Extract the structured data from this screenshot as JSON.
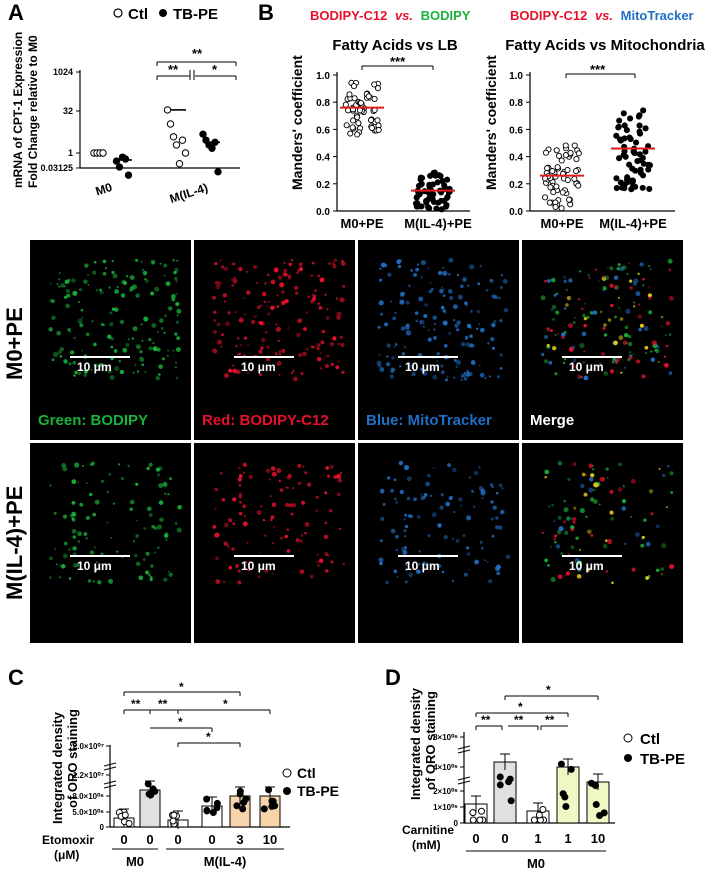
{
  "panels": {
    "A": "A",
    "B": "B",
    "C": "C",
    "D": "D"
  },
  "legend": {
    "ctl": "Ctl",
    "tbpe": "TB-PE"
  },
  "panelA": {
    "ylabel_line1": "mRNA of CPT-1 Expression",
    "ylabel_line2": "Fold Change relative to M0",
    "yticks": [
      "1024",
      "32",
      "1",
      "0.03125"
    ],
    "xcats": [
      "M0",
      "M(IL-4)"
    ],
    "sig": [
      "**",
      "**",
      "*"
    ]
  },
  "panelB": {
    "left_header_red": "BODIPY-C12",
    "left_header_vs": "vs.",
    "left_header_green": "BODIPY",
    "right_header_red": "BODIPY-C12",
    "right_header_vs": "vs.",
    "right_header_blue": "MitoTracker",
    "left_title": "Fatty Acids vs LB",
    "right_title": "Fatty Acids vs Mitochondria",
    "ylabel": "Manders' coefficient",
    "yticks": [
      "1.0",
      "0.8",
      "0.6",
      "0.4",
      "0.2",
      "0.0"
    ],
    "xcats": [
      "M0+PE",
      "M(IL-4)+PE"
    ],
    "sig": "***"
  },
  "micro": {
    "row1": "M0+PE",
    "row2": "M(IL-4)+PE",
    "scale": "10 μm",
    "captions": {
      "green": "Green: BODIPY",
      "red": "Red: BODIPY-C12",
      "blue": "Blue: MitoTracker",
      "merge": "Merge"
    }
  },
  "panelC": {
    "ylabel_line1": "Integrated density",
    "ylabel_line2": "of ORO staining",
    "yticks": [
      "2.0×10⁰⁷",
      "1.2×10⁰⁷",
      "8.0×10⁰⁶",
      "5.0×10⁰⁶",
      "0"
    ],
    "xtitle_line1": "Etomoxir",
    "xtitle_line2": "(μM)",
    "xvals": [
      "0",
      "0",
      "0",
      "0",
      "3",
      "10"
    ],
    "group1": "M0",
    "group2": "M(IL-4)",
    "sig": [
      "*",
      "**",
      "**",
      "*",
      "*",
      "*"
    ]
  },
  "panelD": {
    "ylabel_line1": "Integrated density",
    "ylabel_line2": "of ORO staining",
    "yticks": [
      "8×10⁰⁶",
      "4×10⁰⁶",
      "2×10⁰⁶",
      "1×10⁰⁶",
      "0"
    ],
    "xtitle_line1": "Carnitine",
    "xtitle_line2": "(mM)",
    "xvals": [
      "0",
      "0",
      "1",
      "1",
      "10"
    ],
    "group": "M0",
    "sig": [
      "*",
      "*",
      "**",
      "**",
      "**"
    ]
  },
  "colors": {
    "red": "#e8112d",
    "green": "#19b23a",
    "blue": "#1f6fc4",
    "grey_bar": "#e0e0e0",
    "orange_bar": "#f8d4ab",
    "yellow_bar": "#f0f6c4",
    "mean_line": "#e21a1a"
  },
  "chart_data": [
    {
      "panel": "A",
      "type": "scatter",
      "scale": "log2",
      "categories": [
        "M0",
        "M(IL-4)"
      ],
      "series": [
        {
          "name": "Ctl",
          "values": [
            [
              1,
              1,
              1,
              1
            ],
            [
              40,
              12,
              4,
              2,
              0.4,
              3,
              1
            ]
          ]
        },
        {
          "name": "TB-PE",
          "values": [
            [
              0.5,
              0.3,
              0.7,
              0.6,
              0.15
            ],
            [
              5,
              3,
              2,
              1.5,
              2.5,
              0.2
            ]
          ]
        }
      ],
      "ylim": [
        0.03125,
        1024
      ]
    },
    {
      "panel": "B-left",
      "type": "scatter",
      "categories": [
        "M0+PE",
        "M(IL-4)+PE"
      ],
      "mean": [
        0.76,
        0.15
      ],
      "ylim": [
        0,
        1.0
      ]
    },
    {
      "panel": "B-right",
      "type": "scatter",
      "categories": [
        "M0+PE",
        "M(IL-4)+PE"
      ],
      "mean": [
        0.26,
        0.46
      ],
      "ylim": [
        0,
        1.0
      ]
    },
    {
      "panel": "C",
      "type": "bar",
      "categories": [
        "M0 0 Ctl",
        "M0 0 TB-PE",
        "M(IL-4) 0 Ctl",
        "M(IL-4) 0 TB-PE",
        "M(IL-4) 3 TB-PE",
        "M(IL-4) 10 TB-PE"
      ],
      "values": [
        1800000,
        9000000,
        1400000,
        3800000,
        7400000,
        7400000
      ]
    },
    {
      "panel": "D",
      "type": "bar",
      "categories": [
        "M0 0 Ctl",
        "M0 0 TB-PE",
        "M0 1 Ctl",
        "M0 1 TB-PE",
        "M0 10 TB-PE"
      ],
      "values": [
        1000000,
        4500000,
        600000,
        4000000,
        3000000
      ]
    }
  ]
}
